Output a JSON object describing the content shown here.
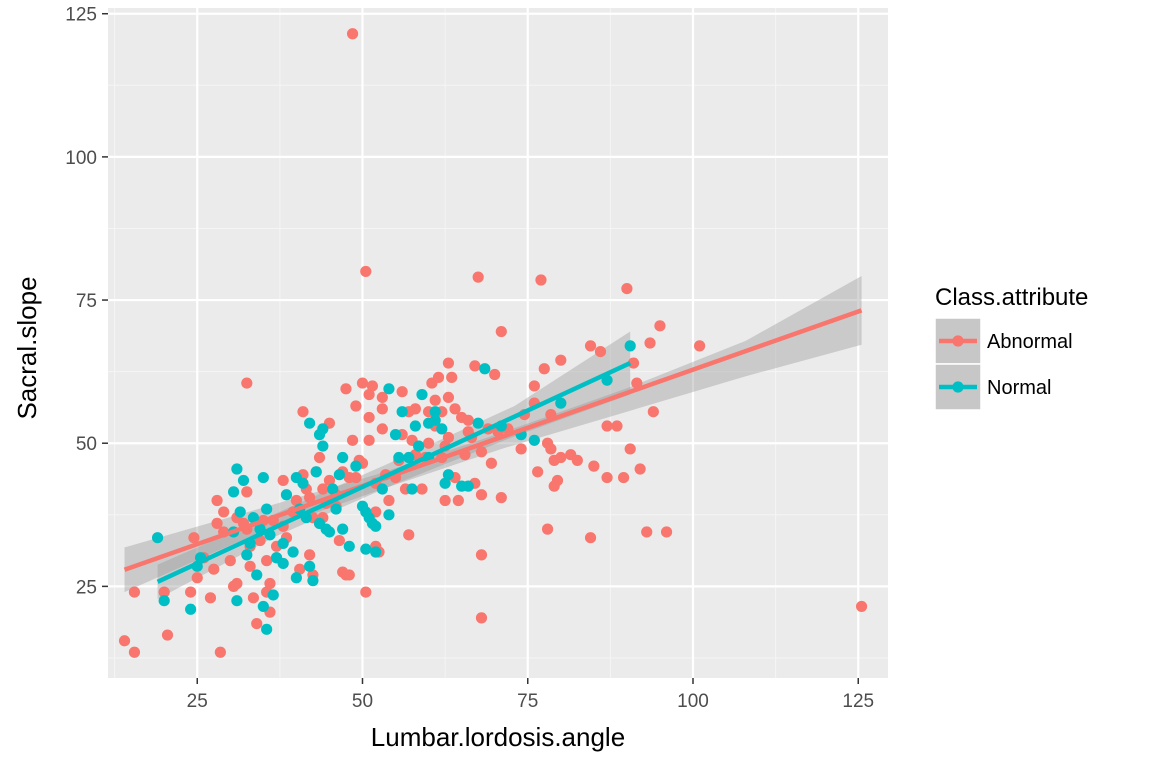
{
  "chart_data": {
    "type": "scatter",
    "xlabel": "Lumbar.lordosis.angle",
    "ylabel": "Sacral.slope",
    "xlim": [
      11.5,
      129.5
    ],
    "ylim": [
      9,
      126
    ],
    "x_ticks": [
      25,
      50,
      75,
      100,
      125
    ],
    "y_ticks": [
      25,
      50,
      75,
      100,
      125
    ],
    "grid": true,
    "legend_position": "right",
    "legend_title": "Class.attribute",
    "series": [
      {
        "name": "Abnormal",
        "color": "#F8766D",
        "points": [
          [
            14,
            15.5
          ],
          [
            15.5,
            13.5
          ],
          [
            15.5,
            24
          ],
          [
            20,
            24
          ],
          [
            20.5,
            16.5
          ],
          [
            24,
            24
          ],
          [
            24.5,
            33.5
          ],
          [
            25,
            26.5
          ],
          [
            26,
            30
          ],
          [
            27,
            23
          ],
          [
            27.5,
            28
          ],
          [
            28,
            36
          ],
          [
            28,
            40
          ],
          [
            28.5,
            13.5
          ],
          [
            29,
            34.5
          ],
          [
            29,
            38
          ],
          [
            30,
            29.5
          ],
          [
            30.5,
            25
          ],
          [
            31,
            37
          ],
          [
            31,
            25.5
          ],
          [
            32,
            36
          ],
          [
            32.5,
            35
          ],
          [
            32.5,
            41.5
          ],
          [
            32.5,
            60.5
          ],
          [
            33,
            32
          ],
          [
            33,
            28.5
          ],
          [
            33.5,
            23
          ],
          [
            34,
            18.5
          ],
          [
            34.5,
            33
          ],
          [
            35,
            36.5
          ],
          [
            35.5,
            29.5
          ],
          [
            35.5,
            24
          ],
          [
            36,
            25.5
          ],
          [
            36,
            20.5
          ],
          [
            36.5,
            36.5
          ],
          [
            37,
            30
          ],
          [
            37,
            32
          ],
          [
            38,
            43.5
          ],
          [
            38,
            35.5
          ],
          [
            38.5,
            33.5
          ],
          [
            39.5,
            38
          ],
          [
            40,
            40
          ],
          [
            40.5,
            28
          ],
          [
            41,
            55.5
          ],
          [
            41,
            44.5
          ],
          [
            41.5,
            42
          ],
          [
            42,
            40.5
          ],
          [
            42,
            30.5
          ],
          [
            42.5,
            37
          ],
          [
            42.5,
            27
          ],
          [
            43,
            45
          ],
          [
            43.5,
            36
          ],
          [
            43.5,
            47.5
          ],
          [
            44,
            42
          ],
          [
            44,
            37
          ],
          [
            44.5,
            39.5
          ],
          [
            45,
            43.5
          ],
          [
            45,
            53.5
          ],
          [
            46,
            41
          ],
          [
            46,
            39
          ],
          [
            46.5,
            33
          ],
          [
            47,
            27.5
          ],
          [
            47,
            45
          ],
          [
            47.5,
            27
          ],
          [
            47.5,
            59.5
          ],
          [
            48,
            27
          ],
          [
            48,
            44
          ],
          [
            48.5,
            50.5
          ],
          [
            48.5,
            121.5
          ],
          [
            49,
            56.5
          ],
          [
            49,
            44
          ],
          [
            49.5,
            47
          ],
          [
            50,
            60.5
          ],
          [
            50,
            46.5
          ],
          [
            50.5,
            80
          ],
          [
            50.5,
            24
          ],
          [
            51,
            54.5
          ],
          [
            51,
            50.5
          ],
          [
            51,
            58.5
          ],
          [
            51.5,
            60
          ],
          [
            52,
            32
          ],
          [
            52,
            43
          ],
          [
            52,
            38
          ],
          [
            52.5,
            31
          ],
          [
            53,
            52.5
          ],
          [
            53,
            56
          ],
          [
            53,
            58
          ],
          [
            53.5,
            44.5
          ],
          [
            54,
            40
          ],
          [
            55,
            44
          ],
          [
            55.5,
            47
          ],
          [
            56,
            59
          ],
          [
            56,
            51.5
          ],
          [
            56.5,
            42
          ],
          [
            57,
            34
          ],
          [
            57,
            55.5
          ],
          [
            57.5,
            50.5
          ],
          [
            58,
            56
          ],
          [
            58,
            48
          ],
          [
            58.5,
            49.5
          ],
          [
            59,
            42
          ],
          [
            59.5,
            47.5
          ],
          [
            60,
            55.5
          ],
          [
            60,
            50
          ],
          [
            60.5,
            60.5
          ],
          [
            61,
            57.5
          ],
          [
            61,
            53
          ],
          [
            61.5,
            61.5
          ],
          [
            62,
            55.5
          ],
          [
            62,
            47.5
          ],
          [
            62.5,
            40
          ],
          [
            62.5,
            49.5
          ],
          [
            63,
            64
          ],
          [
            63,
            58
          ],
          [
            63,
            51
          ],
          [
            63.5,
            61.5
          ],
          [
            64,
            56
          ],
          [
            64,
            44
          ],
          [
            64.5,
            40
          ],
          [
            65,
            54.5
          ],
          [
            65.5,
            48
          ],
          [
            66,
            52
          ],
          [
            66,
            54
          ],
          [
            66.5,
            51
          ],
          [
            67,
            63.5
          ],
          [
            67,
            43
          ],
          [
            67.5,
            79
          ],
          [
            68,
            41
          ],
          [
            68,
            48.5
          ],
          [
            68,
            30.5
          ],
          [
            68,
            19.5
          ],
          [
            69,
            52.5
          ],
          [
            69.5,
            46.5
          ],
          [
            70,
            62
          ],
          [
            70.5,
            52
          ],
          [
            71,
            69.5
          ],
          [
            71,
            40.5
          ],
          [
            72,
            52.5
          ],
          [
            74,
            49
          ],
          [
            74.5,
            55
          ],
          [
            76,
            57
          ],
          [
            76,
            60
          ],
          [
            76.5,
            45
          ],
          [
            77,
            78.5
          ],
          [
            77.5,
            63
          ],
          [
            78,
            50
          ],
          [
            78,
            35
          ],
          [
            78.5,
            55
          ],
          [
            78.5,
            49
          ],
          [
            79,
            42.5
          ],
          [
            79,
            47
          ],
          [
            79.5,
            43.5
          ],
          [
            80,
            64.5
          ],
          [
            80,
            47.5
          ],
          [
            81.5,
            48
          ],
          [
            82.5,
            47
          ],
          [
            84.5,
            67
          ],
          [
            84.5,
            33.5
          ],
          [
            85,
            46
          ],
          [
            86,
            66
          ],
          [
            87,
            44
          ],
          [
            87,
            53
          ],
          [
            88.5,
            53
          ],
          [
            89.5,
            44
          ],
          [
            90,
            77
          ],
          [
            90.5,
            49
          ],
          [
            91,
            64
          ],
          [
            91.5,
            60.5
          ],
          [
            92,
            45.5
          ],
          [
            93,
            34.5
          ],
          [
            93.5,
            67.5
          ],
          [
            94,
            55.5
          ],
          [
            95,
            70.5
          ],
          [
            96,
            34.5
          ],
          [
            101,
            67
          ],
          [
            125.5,
            21.5
          ]
        ]
      },
      {
        "name": "Normal",
        "color": "#00BFC4",
        "points": [
          [
            19,
            33.5
          ],
          [
            20,
            22.5
          ],
          [
            24,
            21
          ],
          [
            25,
            28.5
          ],
          [
            25.5,
            30
          ],
          [
            30.5,
            41.5
          ],
          [
            30.5,
            34.5
          ],
          [
            31,
            22.5
          ],
          [
            31,
            45.5
          ],
          [
            31.5,
            38
          ],
          [
            32,
            43.5
          ],
          [
            32.5,
            30.5
          ],
          [
            33,
            32.5
          ],
          [
            33.5,
            37
          ],
          [
            34,
            27
          ],
          [
            34.5,
            35
          ],
          [
            35,
            44
          ],
          [
            35,
            21.5
          ],
          [
            35.5,
            38.5
          ],
          [
            35.5,
            17.5
          ],
          [
            36,
            34
          ],
          [
            36.5,
            23.5
          ],
          [
            37,
            30
          ],
          [
            38,
            29
          ],
          [
            38,
            32.5
          ],
          [
            38.5,
            41
          ],
          [
            39.5,
            31
          ],
          [
            40,
            44
          ],
          [
            40,
            26.5
          ],
          [
            40.5,
            38.5
          ],
          [
            41,
            43
          ],
          [
            41.5,
            37
          ],
          [
            42,
            53.5
          ],
          [
            42,
            28.5
          ],
          [
            42.5,
            26
          ],
          [
            43,
            45
          ],
          [
            43.5,
            36
          ],
          [
            43.5,
            51.5
          ],
          [
            44,
            52.5
          ],
          [
            44,
            49.5
          ],
          [
            44.5,
            35
          ],
          [
            45,
            34.5
          ],
          [
            45.5,
            42
          ],
          [
            46,
            38.5
          ],
          [
            46.5,
            44.5
          ],
          [
            47,
            47.5
          ],
          [
            47,
            35
          ],
          [
            48,
            32
          ],
          [
            49,
            46
          ],
          [
            50,
            39
          ],
          [
            50.5,
            31.5
          ],
          [
            50.5,
            38
          ],
          [
            51,
            37
          ],
          [
            51.5,
            36
          ],
          [
            52,
            35.5
          ],
          [
            52,
            31
          ],
          [
            53,
            42
          ],
          [
            54,
            37.5
          ],
          [
            54,
            59.5
          ],
          [
            55,
            51.5
          ],
          [
            55.5,
            47.5
          ],
          [
            56,
            55.5
          ],
          [
            57,
            47.5
          ],
          [
            57.5,
            42
          ],
          [
            58,
            53
          ],
          [
            58.5,
            49.5
          ],
          [
            59,
            58.5
          ],
          [
            60,
            47.5
          ],
          [
            60,
            53.5
          ],
          [
            61,
            55.5
          ],
          [
            61,
            54
          ],
          [
            62,
            52.5
          ],
          [
            62.5,
            43
          ],
          [
            63,
            44.5
          ],
          [
            65,
            42.5
          ],
          [
            66,
            42.5
          ],
          [
            67.5,
            53.5
          ],
          [
            68.5,
            63
          ],
          [
            71,
            53
          ],
          [
            74,
            51.5
          ],
          [
            76,
            50.5
          ],
          [
            80,
            57
          ],
          [
            87,
            61
          ],
          [
            90.5,
            67
          ]
        ]
      }
    ],
    "trend_lines": [
      {
        "name": "Abnormal",
        "color": "#F8766D",
        "x": [
          14,
          125.5
        ],
        "y": [
          27.9,
          73.2
        ],
        "band_x": [
          14,
          33,
          52,
          71,
          90,
          108,
          125.5
        ],
        "band_low": [
          24.0,
          33.7,
          41.6,
          49.0,
          55.5,
          61.7,
          67.2
        ],
        "band_high": [
          31.8,
          38.1,
          44.5,
          51.8,
          59.6,
          67.9,
          79.2
        ]
      },
      {
        "name": "Normal",
        "color": "#00BFC4",
        "x": [
          19,
          90.5
        ],
        "y": [
          25.8,
          64.0
        ],
        "band_x": [
          19,
          37,
          55,
          73,
          90.5
        ],
        "band_low": [
          22.8,
          33.8,
          42.9,
          51.2,
          58.5
        ],
        "band_high": [
          28.8,
          37.8,
          47.0,
          56.5,
          69.5
        ]
      }
    ]
  }
}
